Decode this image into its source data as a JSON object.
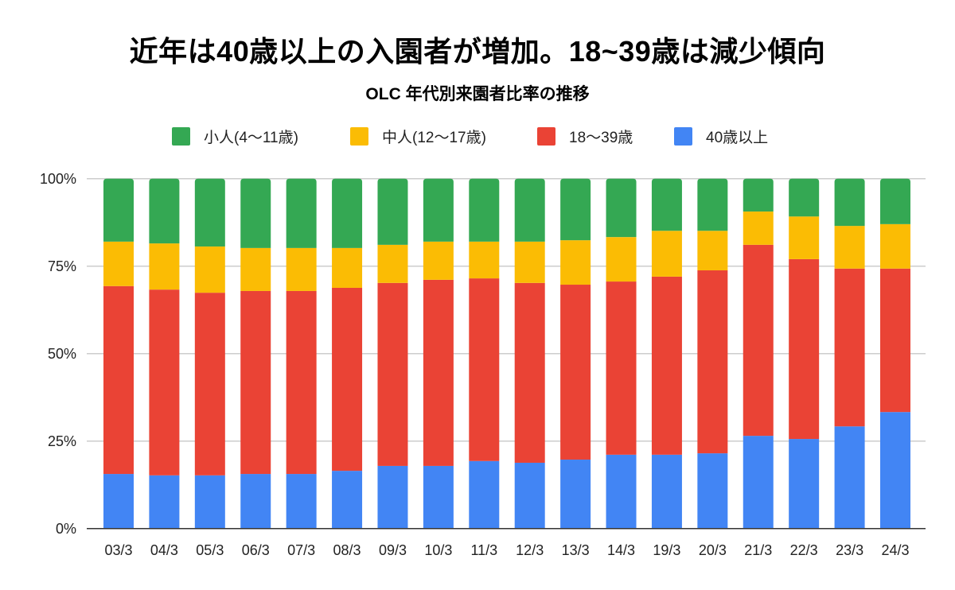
{
  "chart_data": {
    "type": "bar",
    "stacked": true,
    "normalized": true,
    "title": "近年は40歳以上の入園者が増加。18~39歳は減少傾向",
    "subtitle": "OLC 年代別来園者比率の推移",
    "xlabel": "",
    "ylabel": "",
    "ylim": [
      0,
      100
    ],
    "yticks": [
      "0%",
      "25%",
      "50%",
      "75%",
      "100%"
    ],
    "ytick_values": [
      0,
      25,
      50,
      75,
      100
    ],
    "grid": true,
    "legend_position": "top",
    "categories": [
      "03/3",
      "04/3",
      "05/3",
      "06/3",
      "07/3",
      "08/3",
      "09/3",
      "10/3",
      "11/3",
      "12/3",
      "13/3",
      "14/3",
      "19/3",
      "20/3",
      "21/3",
      "22/3",
      "23/3",
      "24/3"
    ],
    "series": [
      {
        "name": "40歳以上",
        "color": "#4285f4",
        "values": [
          15.6,
          15.2,
          15.2,
          15.6,
          15.6,
          16.5,
          17.9,
          17.9,
          19.3,
          18.8,
          19.7,
          21.1,
          21.1,
          21.5,
          26.5,
          25.6,
          29.2,
          33.3
        ]
      },
      {
        "name": "18〜39歳",
        "color": "#ea4335",
        "values": [
          53.7,
          53.1,
          52.2,
          52.3,
          52.3,
          52.3,
          52.3,
          53.2,
          52.2,
          51.4,
          50.0,
          49.5,
          50.9,
          52.3,
          54.6,
          51.4,
          45.1,
          41.0
        ]
      },
      {
        "name": "中人(12〜17歳)",
        "color": "#fbbc04",
        "values": [
          12.7,
          13.2,
          13.2,
          12.3,
          12.3,
          11.4,
          10.9,
          10.9,
          10.5,
          11.8,
          12.7,
          12.7,
          13.1,
          11.3,
          9.5,
          12.2,
          12.2,
          12.7
        ]
      },
      {
        "name": "小人(4〜11歳)",
        "color": "#34a853",
        "values": [
          18.0,
          18.5,
          19.4,
          19.8,
          19.8,
          19.8,
          18.9,
          18.0,
          18.0,
          18.0,
          17.6,
          16.7,
          14.9,
          14.9,
          9.4,
          10.8,
          13.5,
          13.0
        ]
      }
    ],
    "legend": [
      {
        "label": "小人(4〜11歳)",
        "color": "#34a853"
      },
      {
        "label": "中人(12〜17歳)",
        "color": "#fbbc04"
      },
      {
        "label": "18〜39歳",
        "color": "#ea4335"
      },
      {
        "label": "40歳以上",
        "color": "#4285f4"
      }
    ]
  }
}
